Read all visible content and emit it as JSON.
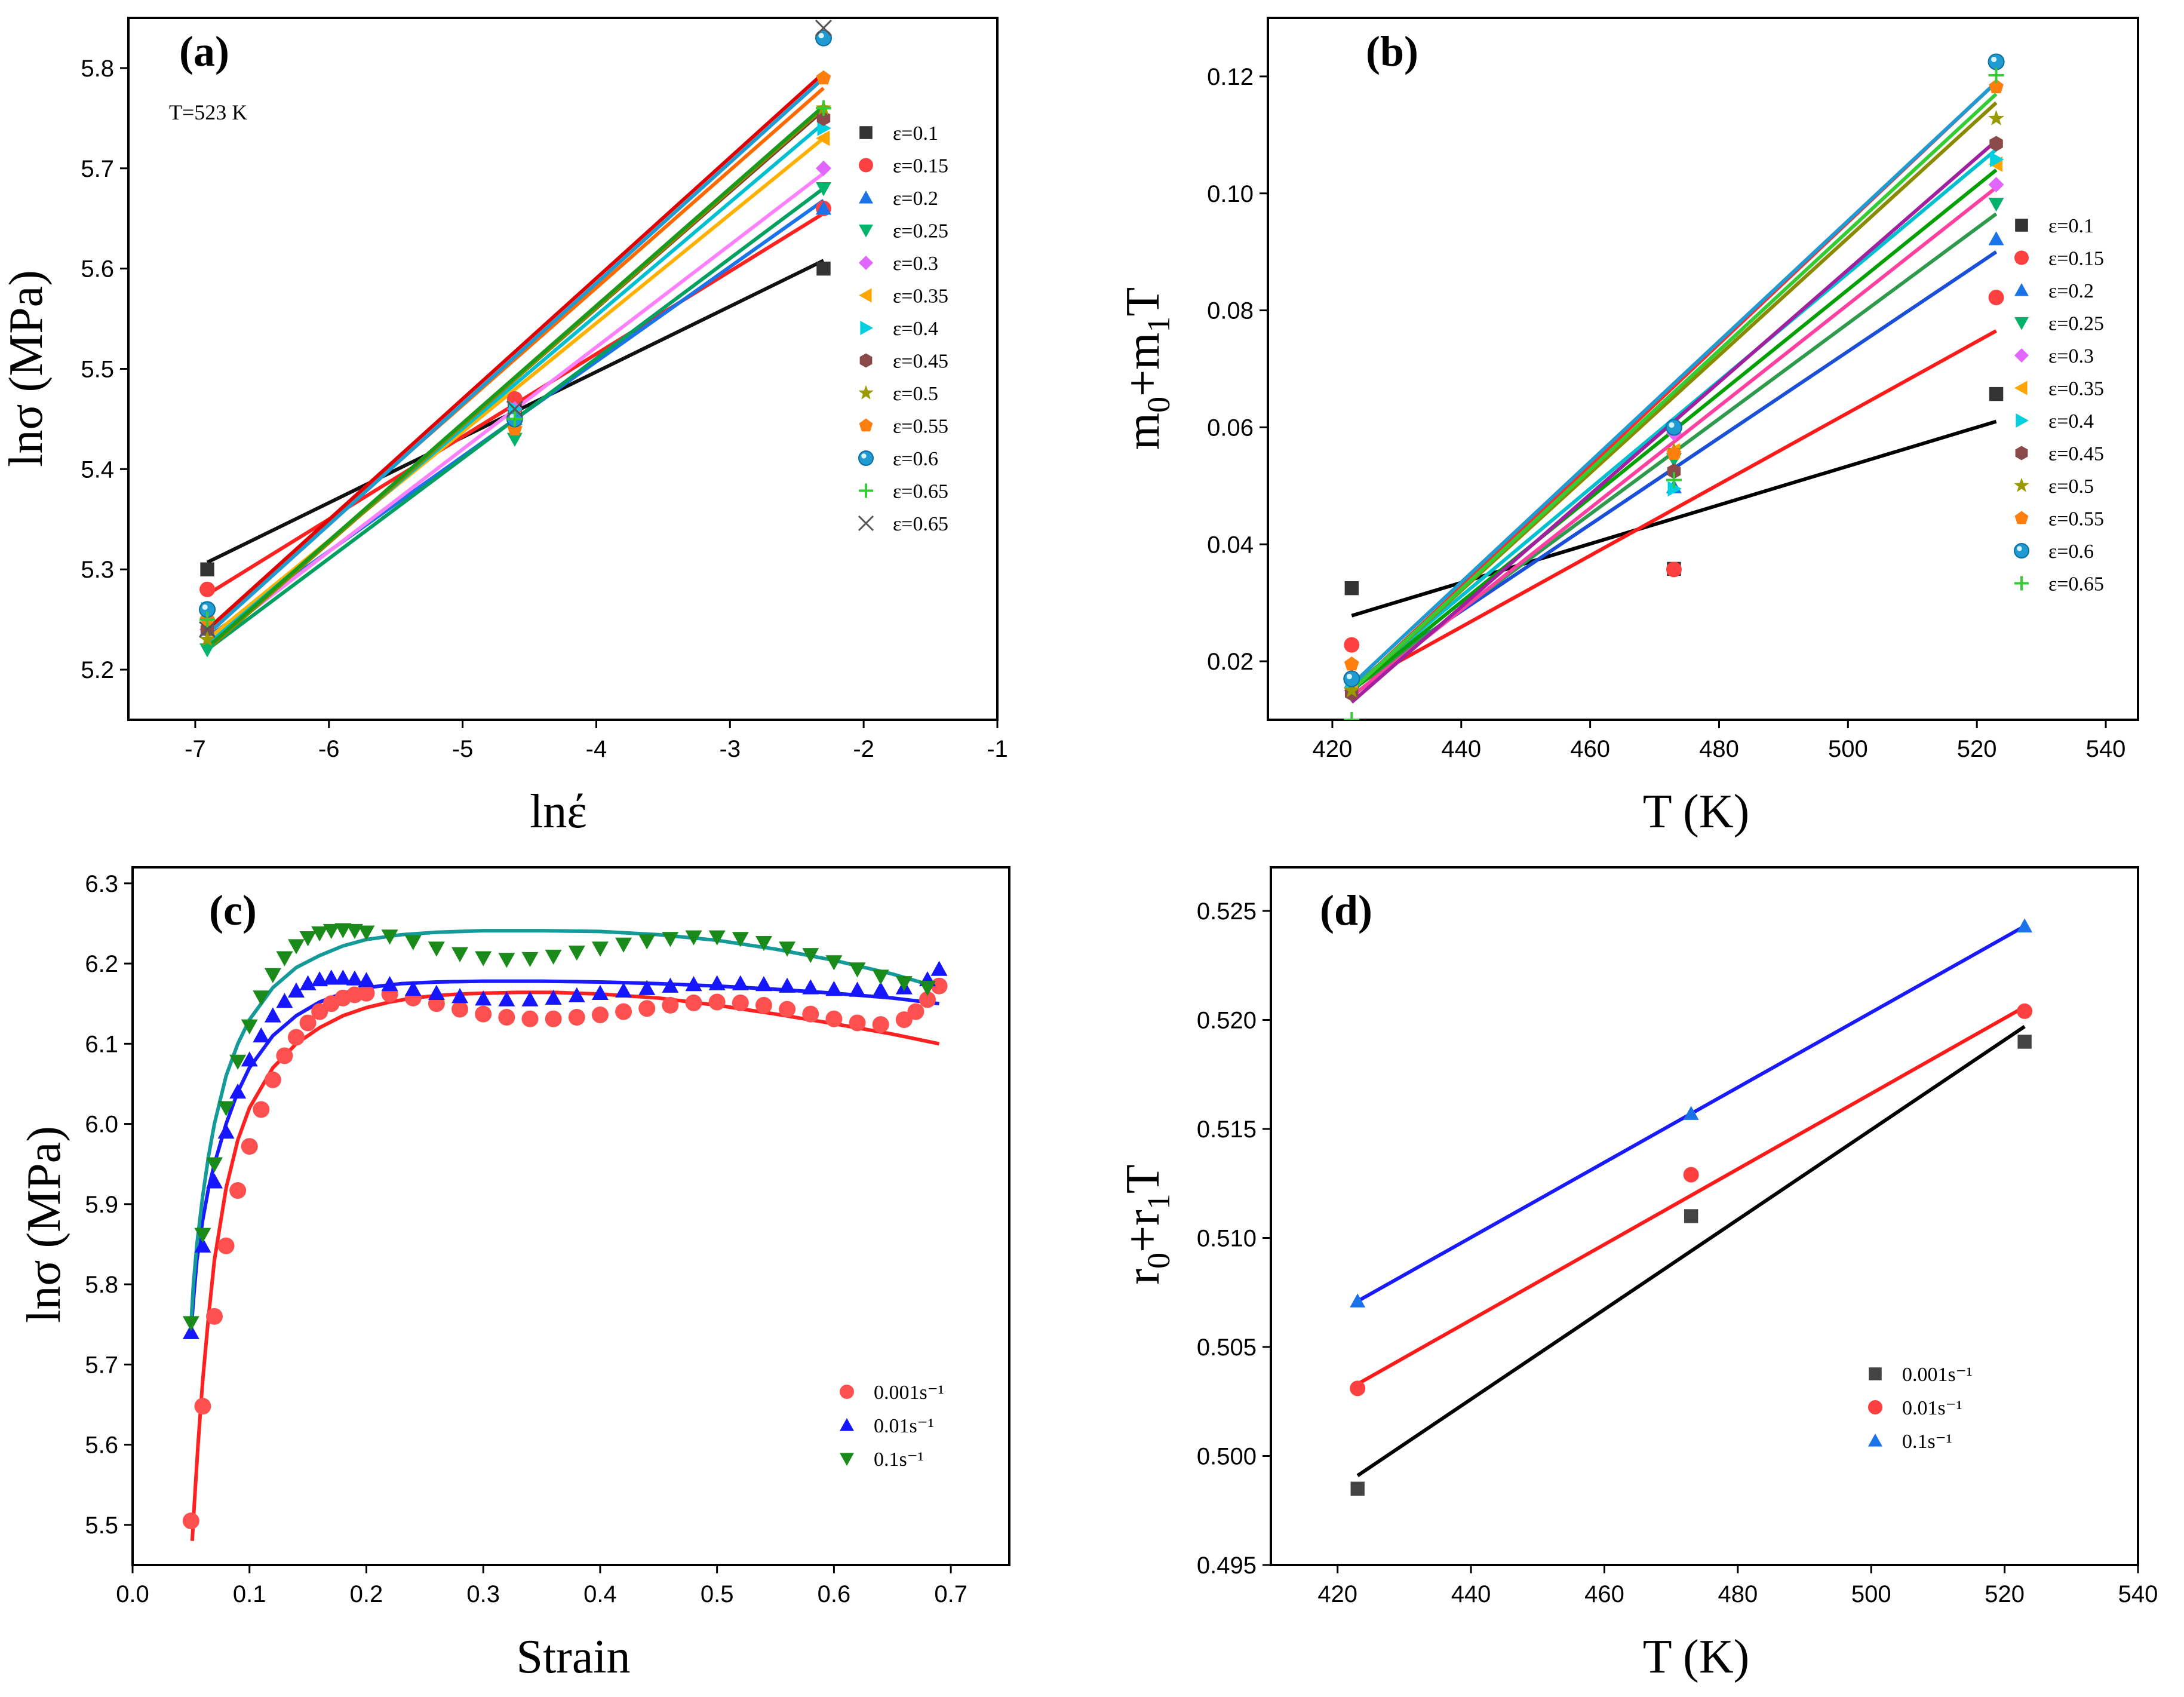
{
  "chart_data": [
    {
      "id": "a",
      "type": "scatter",
      "panel_label": "(a)",
      "annotation": "T=523 K",
      "xlabel": "lnέ",
      "ylabel": "lnσ (MPa)",
      "xlim": [
        -7.5,
        -1
      ],
      "ylim": [
        5.15,
        5.85
      ],
      "xticks": [
        "-7",
        "-6",
        "-5",
        "-4",
        "-3",
        "-2",
        "-1"
      ],
      "yticks": [
        "5.2",
        "5.3",
        "5.4",
        "5.5",
        "5.6",
        "5.7",
        "5.8"
      ],
      "x": [
        -6.91,
        -4.61,
        -2.3
      ],
      "series": [
        {
          "name": "ε=0.1",
          "marker": "square",
          "color": "#333333",
          "line_color": "#111111",
          "values": [
            5.3,
            5.46,
            5.6
          ],
          "fit": [
            5.307,
            5.608
          ]
        },
        {
          "name": "ε=0.15",
          "marker": "circle",
          "color": "#ff4040",
          "line_color": "#ff2020",
          "values": [
            5.28,
            5.47,
            5.66
          ],
          "fit": [
            5.275,
            5.655
          ]
        },
        {
          "name": "ε=0.2",
          "marker": "triangle-up",
          "color": "#1a73e8",
          "line_color": "#1a73e8",
          "values": [
            5.24,
            5.45,
            5.66
          ],
          "fit": [
            5.232,
            5.668
          ]
        },
        {
          "name": "ε=0.25",
          "marker": "triangle-down",
          "color": "#00b36b",
          "line_color": "#00a060",
          "values": [
            5.22,
            5.43,
            5.68
          ],
          "fit": [
            5.22,
            5.68
          ]
        },
        {
          "name": "ε=0.3",
          "marker": "diamond",
          "color": "#e066ff",
          "line_color": "#ff80ff",
          "values": [
            5.24,
            5.46,
            5.7
          ],
          "fit": [
            5.225,
            5.695
          ]
        },
        {
          "name": "ε=0.35",
          "marker": "triangle-left",
          "color": "#ffa500",
          "line_color": "#ffb000",
          "values": [
            5.25,
            5.45,
            5.73
          ],
          "fit": [
            5.23,
            5.73
          ]
        },
        {
          "name": "ε=0.4",
          "marker": "triangle-right",
          "color": "#00d0e0",
          "line_color": "#00c0d0",
          "values": [
            5.26,
            5.46,
            5.74
          ],
          "fit": [
            5.225,
            5.745
          ]
        },
        {
          "name": "ε=0.45",
          "marker": "hexagon",
          "color": "#8b4a4a",
          "line_color": "#7a3a3a",
          "values": [
            5.24,
            5.45,
            5.75
          ],
          "fit": [
            5.222,
            5.758
          ]
        },
        {
          "name": "ε=0.5",
          "marker": "star",
          "color": "#999900",
          "line_color": "#8a8a00",
          "values": [
            5.23,
            5.44,
            5.76
          ],
          "fit": [
            5.22,
            5.76
          ]
        },
        {
          "name": "ε=0.55",
          "marker": "pentagon",
          "color": "#ff7f0e",
          "line_color": "#ff6a00",
          "values": [
            5.25,
            5.44,
            5.79
          ],
          "fit": [
            5.24,
            5.78
          ]
        },
        {
          "name": "ε=0.6",
          "marker": "ball",
          "color": "#1f9bd1",
          "line_color": "#1f9bd1",
          "values": [
            5.26,
            5.45,
            5.83
          ],
          "fit": [
            5.235,
            5.79
          ]
        },
        {
          "name": "ε=0.65",
          "marker": "plus",
          "color": "#33cc33",
          "line_color": "#1a9a1a",
          "values": [
            5.25,
            5.45,
            5.76
          ],
          "fit": [
            5.222,
            5.762
          ]
        },
        {
          "name": "ε=0.65",
          "marker": "x",
          "color": "#555555",
          "line_color": "#e00000",
          "values": [
            5.24,
            5.46,
            5.84
          ],
          "fit": [
            5.24,
            5.795
          ]
        }
      ]
    },
    {
      "id": "b",
      "type": "scatter",
      "panel_label": "(b)",
      "xlabel": "T (K)",
      "ylabel": "m0+m1T",
      "xlim": [
        410,
        545
      ],
      "ylim": [
        0.01,
        0.13
      ],
      "xticks": [
        "420",
        "440",
        "460",
        "480",
        "500",
        "520",
        "540"
      ],
      "yticks": [
        "0.02",
        "0.04",
        "0.06",
        "0.08",
        "0.10",
        "0.12"
      ],
      "x": [
        423,
        473,
        523
      ],
      "series": [
        {
          "name": "ε=0.1",
          "marker": "square",
          "color": "#333333",
          "line_color": "#000000",
          "values": [
            0.0325,
            0.0358,
            0.0657
          ],
          "fit": [
            0.0278,
            0.061
          ]
        },
        {
          "name": "ε=0.15",
          "marker": "circle",
          "color": "#ff4040",
          "line_color": "#ff1a1a",
          "values": [
            0.0228,
            0.0357,
            0.0822
          ],
          "fit": [
            0.0155,
            0.0765
          ]
        },
        {
          "name": "ε=0.2",
          "marker": "triangle-up",
          "color": "#1a73e8",
          "line_color": "#1a4fd8",
          "values": [
            0.0165,
            0.0498,
            0.0922
          ],
          "fit": [
            0.016,
            0.09
          ]
        },
        {
          "name": "ε=0.25",
          "marker": "triangle-down",
          "color": "#00b36b",
          "line_color": "#2d9b4b",
          "values": [
            0.016,
            0.0545,
            0.0982
          ],
          "fit": [
            0.015,
            0.0965
          ]
        },
        {
          "name": "ε=0.3",
          "marker": "diamond",
          "color": "#e066ff",
          "line_color": "#ff40a0",
          "values": [
            0.015,
            0.059,
            0.1015
          ],
          "fit": [
            0.014,
            0.101
          ]
        },
        {
          "name": "ε=0.35",
          "marker": "triangle-left",
          "color": "#ffa500",
          "line_color": "#00a000",
          "values": [
            0.0155,
            0.056,
            0.105
          ],
          "fit": [
            0.015,
            0.104
          ]
        },
        {
          "name": "ε=0.4",
          "marker": "triangle-right",
          "color": "#00d0e0",
          "line_color": "#00c0d0",
          "values": [
            0.0165,
            0.0495,
            0.1058
          ],
          "fit": [
            0.0155,
            0.1075
          ]
        },
        {
          "name": "ε=0.45",
          "marker": "hexagon",
          "color": "#8b4a4a",
          "line_color": "#a020a0",
          "values": [
            0.0145,
            0.0525,
            0.1085
          ],
          "fit": [
            0.013,
            0.109
          ]
        },
        {
          "name": "ε=0.5",
          "marker": "star",
          "color": "#999900",
          "line_color": "#8a8a00",
          "values": [
            0.015,
            0.056,
            0.1128
          ],
          "fit": [
            0.015,
            0.1155
          ]
        },
        {
          "name": "ε=0.55",
          "marker": "pentagon",
          "color": "#ff7f0e",
          "line_color": "#ff2a2a",
          "values": [
            0.0195,
            0.0555,
            0.1182
          ],
          "fit": [
            0.015,
            0.119
          ]
        },
        {
          "name": "ε=0.6",
          "marker": "ball",
          "color": "#1f9bd1",
          "line_color": "#1f9bd1",
          "values": [
            0.017,
            0.06,
            0.1225
          ],
          "fit": [
            0.016,
            0.119
          ]
        },
        {
          "name": "ε=0.65",
          "marker": "plus",
          "color": "#33cc33",
          "line_color": "#33cc33",
          "values": [
            0.01,
            0.051,
            0.1202
          ],
          "fit": [
            0.015,
            0.117
          ]
        }
      ]
    },
    {
      "id": "c",
      "type": "scatter",
      "panel_label": "(c)",
      "xlabel": "Strain",
      "ylabel": "lnσ (MPa)",
      "xlim": [
        0.0,
        0.75
      ],
      "ylim": [
        5.45,
        6.32
      ],
      "xticks": [
        "0.0",
        "0.1",
        "0.2",
        "0.3",
        "0.4",
        "0.5",
        "0.6",
        "0.7"
      ],
      "yticks": [
        "5.5",
        "5.6",
        "5.7",
        "5.8",
        "5.9",
        "6.0",
        "6.1",
        "6.2",
        "6.3"
      ],
      "series": [
        {
          "name": "0.001s⁻¹",
          "marker": "circle",
          "color": "#ff5050",
          "line_color": "#ff2020",
          "x": [
            0.05,
            0.06,
            0.07,
            0.08,
            0.09,
            0.1,
            0.11,
            0.12,
            0.13,
            0.14,
            0.15,
            0.16,
            0.17,
            0.18,
            0.19,
            0.2,
            0.22,
            0.24,
            0.26,
            0.28,
            0.3,
            0.32,
            0.34,
            0.36,
            0.38,
            0.4,
            0.42,
            0.44,
            0.46,
            0.48,
            0.5,
            0.52,
            0.54,
            0.56,
            0.58,
            0.6,
            0.62,
            0.64,
            0.66,
            0.67,
            0.68,
            0.69
          ],
          "values": [
            5.505,
            5.648,
            5.76,
            5.848,
            5.917,
            5.972,
            6.018,
            6.055,
            6.085,
            6.108,
            6.126,
            6.14,
            6.15,
            6.157,
            6.161,
            6.163,
            6.162,
            6.157,
            6.15,
            6.143,
            6.137,
            6.133,
            6.131,
            6.131,
            6.133,
            6.136,
            6.14,
            6.144,
            6.148,
            6.151,
            6.152,
            6.151,
            6.148,
            6.143,
            6.137,
            6.131,
            6.126,
            6.124,
            6.13,
            6.14,
            6.155,
            6.172
          ],
          "fit_x": [
            0.051,
            0.053,
            0.056,
            0.06,
            0.065,
            0.07,
            0.08,
            0.09,
            0.1,
            0.12,
            0.14,
            0.16,
            0.18,
            0.2,
            0.22,
            0.24,
            0.26,
            0.28,
            0.3,
            0.33,
            0.36,
            0.4,
            0.45,
            0.5,
            0.55,
            0.6,
            0.65,
            0.69
          ],
          "fit_y": [
            5.48,
            5.53,
            5.6,
            5.68,
            5.76,
            5.83,
            5.92,
            5.98,
            6.02,
            6.07,
            6.1,
            6.12,
            6.135,
            6.145,
            6.152,
            6.157,
            6.16,
            6.162,
            6.163,
            6.164,
            6.164,
            6.162,
            6.157,
            6.148,
            6.137,
            6.125,
            6.112,
            6.1
          ]
        },
        {
          "name": "0.01s⁻¹",
          "marker": "triangle-up",
          "color": "#1515ff",
          "line_color": "#1a1aff",
          "x": [
            0.05,
            0.06,
            0.07,
            0.08,
            0.09,
            0.1,
            0.11,
            0.12,
            0.13,
            0.14,
            0.15,
            0.16,
            0.17,
            0.18,
            0.19,
            0.2,
            0.22,
            0.24,
            0.26,
            0.28,
            0.3,
            0.32,
            0.34,
            0.36,
            0.38,
            0.4,
            0.42,
            0.44,
            0.46,
            0.48,
            0.5,
            0.52,
            0.54,
            0.56,
            0.58,
            0.6,
            0.62,
            0.64,
            0.66,
            0.68,
            0.69
          ],
          "values": [
            5.74,
            5.848,
            5.928,
            5.99,
            6.04,
            6.08,
            6.11,
            6.135,
            6.153,
            6.166,
            6.175,
            6.18,
            6.182,
            6.182,
            6.181,
            6.179,
            6.174,
            6.168,
            6.163,
            6.159,
            6.156,
            6.155,
            6.155,
            6.157,
            6.16,
            6.163,
            6.166,
            6.169,
            6.172,
            6.174,
            6.175,
            6.175,
            6.174,
            6.172,
            6.17,
            6.168,
            6.167,
            6.167,
            6.17,
            6.18,
            6.193
          ],
          "fit_x": [
            0.05,
            0.052,
            0.055,
            0.06,
            0.065,
            0.07,
            0.08,
            0.09,
            0.1,
            0.12,
            0.14,
            0.16,
            0.18,
            0.2,
            0.23,
            0.26,
            0.3,
            0.35,
            0.4,
            0.45,
            0.5,
            0.55,
            0.6,
            0.65,
            0.69
          ],
          "fit_y": [
            5.74,
            5.78,
            5.83,
            5.88,
            5.92,
            5.95,
            6.0,
            6.04,
            6.07,
            6.11,
            6.135,
            6.152,
            6.163,
            6.17,
            6.175,
            6.177,
            6.178,
            6.178,
            6.177,
            6.175,
            6.172,
            6.168,
            6.163,
            6.157,
            6.15
          ]
        },
        {
          "name": "0.1s⁻¹",
          "marker": "triangle-down",
          "color": "#1a8a1a",
          "line_color": "#159a9a",
          "x": [
            0.05,
            0.06,
            0.07,
            0.08,
            0.09,
            0.1,
            0.11,
            0.12,
            0.13,
            0.14,
            0.15,
            0.16,
            0.17,
            0.18,
            0.19,
            0.2,
            0.22,
            0.24,
            0.26,
            0.28,
            0.3,
            0.32,
            0.34,
            0.36,
            0.38,
            0.4,
            0.42,
            0.44,
            0.46,
            0.48,
            0.5,
            0.52,
            0.54,
            0.56,
            0.58,
            0.6,
            0.62,
            0.64,
            0.66,
            0.68
          ],
          "values": [
            5.752,
            5.862,
            5.95,
            6.02,
            6.078,
            6.122,
            6.158,
            6.186,
            6.207,
            6.222,
            6.232,
            6.238,
            6.241,
            6.242,
            6.241,
            6.239,
            6.234,
            6.227,
            6.219,
            6.212,
            6.207,
            6.205,
            6.206,
            6.209,
            6.214,
            6.219,
            6.224,
            6.228,
            6.231,
            6.233,
            6.233,
            6.231,
            6.226,
            6.219,
            6.211,
            6.202,
            6.193,
            6.184,
            6.176,
            6.17
          ],
          "fit_x": [
            0.05,
            0.052,
            0.055,
            0.06,
            0.065,
            0.07,
            0.08,
            0.09,
            0.1,
            0.12,
            0.14,
            0.16,
            0.18,
            0.2,
            0.23,
            0.26,
            0.3,
            0.35,
            0.4,
            0.45,
            0.5,
            0.55,
            0.6,
            0.65,
            0.69
          ],
          "fit_y": [
            5.75,
            5.8,
            5.85,
            5.91,
            5.96,
            6.0,
            6.06,
            6.1,
            6.13,
            6.17,
            6.195,
            6.21,
            6.222,
            6.23,
            6.236,
            6.239,
            6.241,
            6.241,
            6.24,
            6.236,
            6.229,
            6.218,
            6.204,
            6.187,
            6.17
          ]
        }
      ]
    },
    {
      "id": "d",
      "type": "scatter",
      "panel_label": "(d)",
      "xlabel": "T (K)",
      "ylabel": "r0+r1T",
      "xlim": [
        410,
        540
      ],
      "ylim": [
        0.495,
        0.527
      ],
      "xticks": [
        "420",
        "440",
        "460",
        "480",
        "500",
        "520",
        "540"
      ],
      "yticks": [
        "0.495",
        "0.500",
        "0.505",
        "0.510",
        "0.515",
        "0.520",
        "0.525"
      ],
      "x": [
        423,
        473,
        523
      ],
      "series": [
        {
          "name": "0.001s⁻¹",
          "marker": "square",
          "color": "#444444",
          "line_color": "#000000",
          "values": [
            0.4985,
            0.511,
            0.519
          ],
          "fit": [
            0.4991,
            0.5197
          ]
        },
        {
          "name": "0.01s⁻¹",
          "marker": "circle",
          "color": "#ff4040",
          "line_color": "#ff1a1a",
          "values": [
            0.5031,
            0.5129,
            0.5204
          ],
          "fit": [
            0.5033,
            0.5206
          ]
        },
        {
          "name": "0.1s⁻¹",
          "marker": "triangle-up",
          "color": "#1a73e8",
          "line_color": "#1a1aff",
          "values": [
            0.5071,
            0.5157,
            0.5243
          ],
          "fit": [
            0.5071,
            0.5243
          ]
        }
      ]
    }
  ]
}
